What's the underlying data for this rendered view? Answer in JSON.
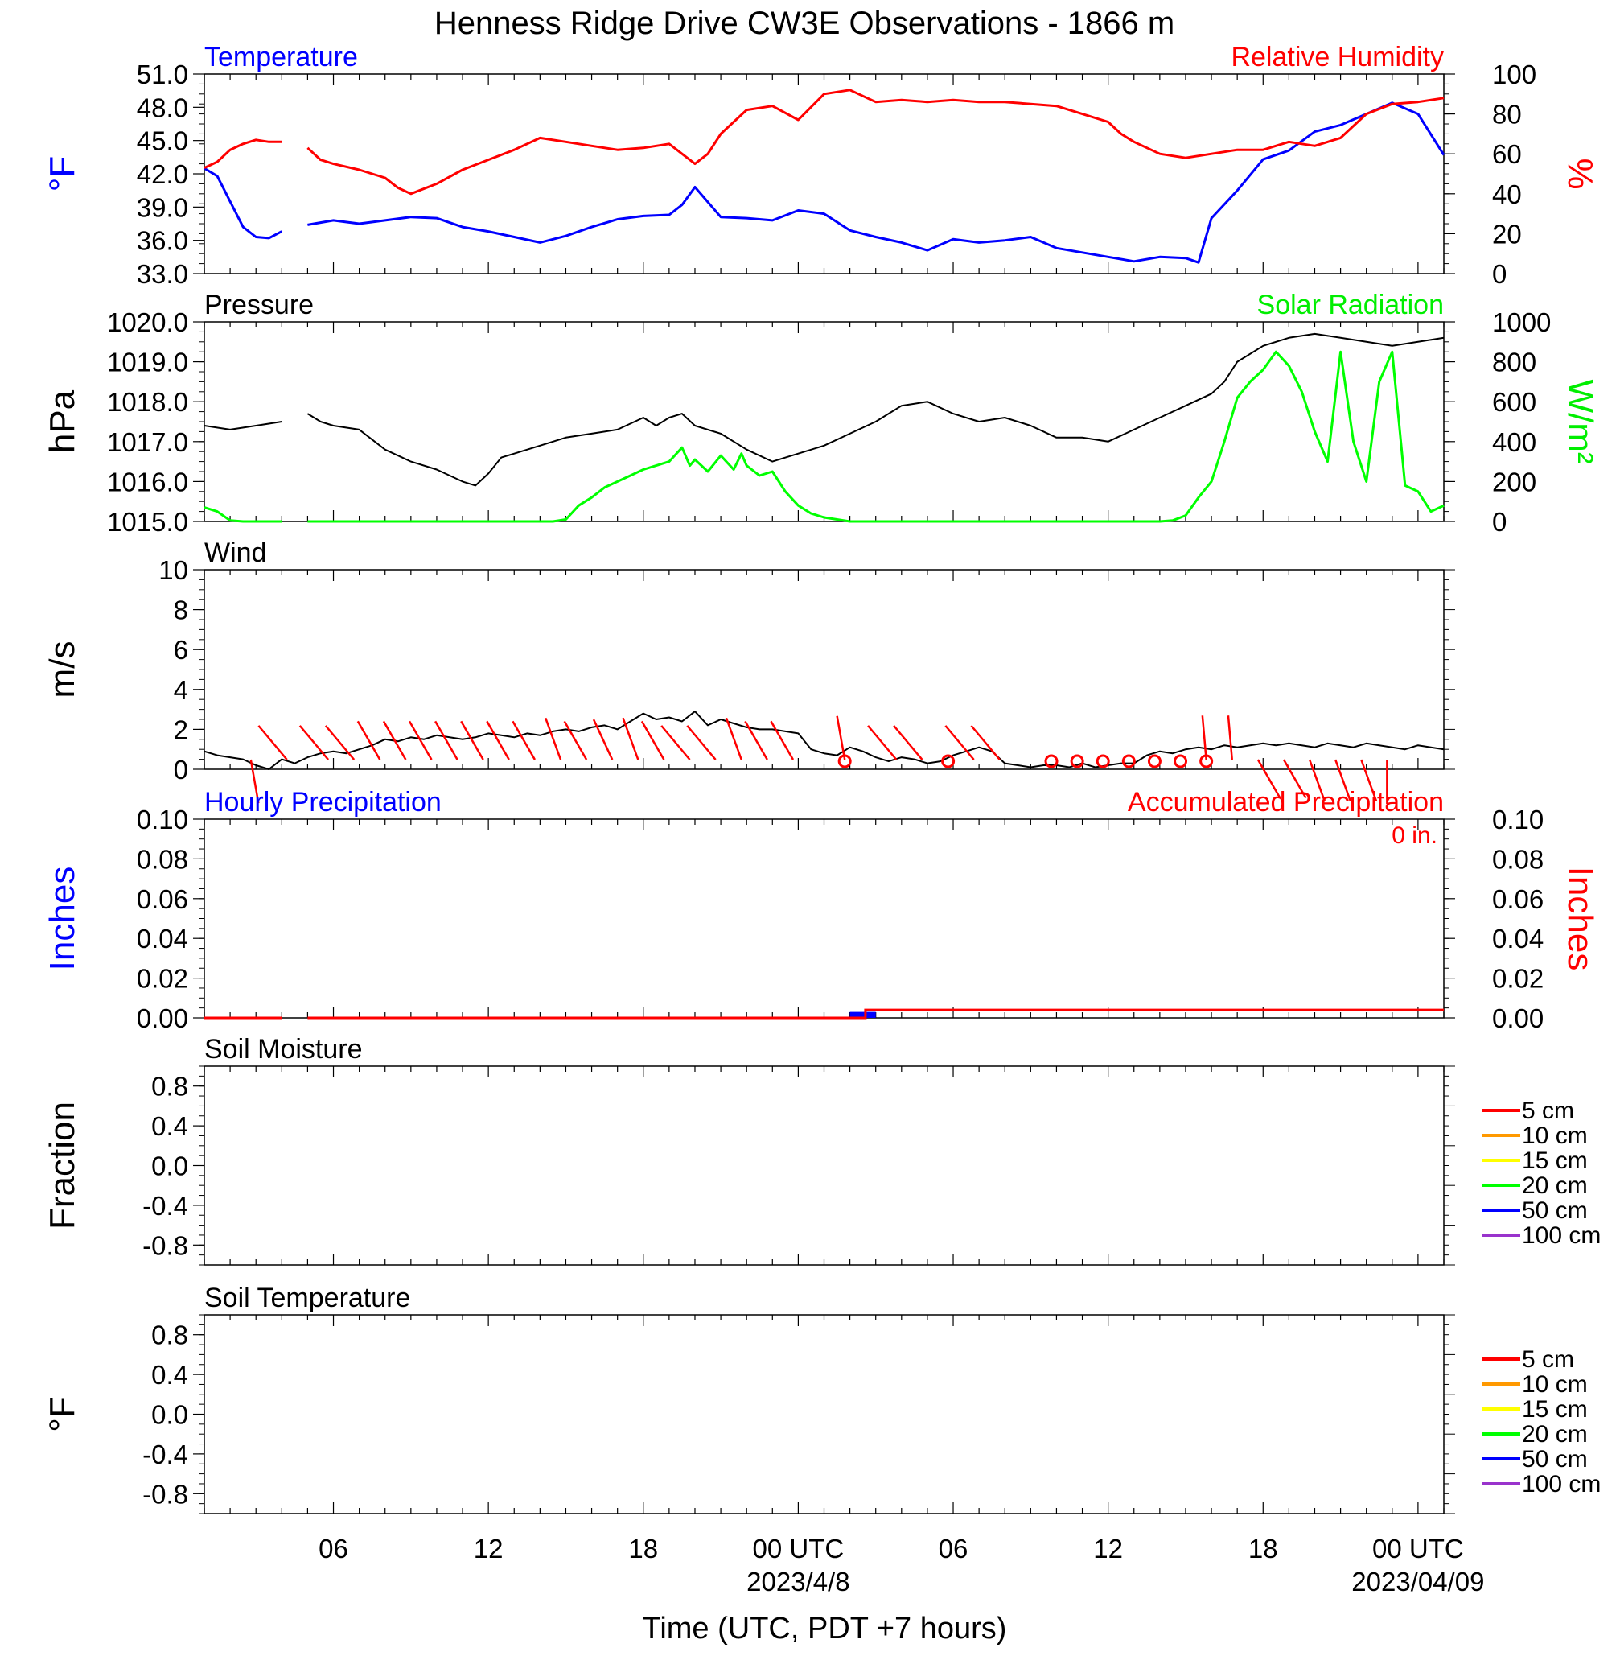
{
  "title": "Henness Ridge Drive CW3E Observations - 1866 m",
  "x_axis": {
    "label": "Time (UTC, PDT +7 hours)",
    "range_hours": [
      0,
      48
    ],
    "tick_labels": [
      {
        "hour": 5,
        "text": "06"
      },
      {
        "hour": 11,
        "text": "12"
      },
      {
        "hour": 17,
        "text": "18"
      },
      {
        "hour": 23,
        "text": "00 UTC"
      },
      {
        "hour": 29,
        "text": "06"
      },
      {
        "hour": 35,
        "text": "12"
      },
      {
        "hour": 41,
        "text": "18"
      },
      {
        "hour": 47,
        "text": "00 UTC"
      }
    ],
    "date_labels": [
      {
        "hour": 23,
        "text": "2023/4/8"
      },
      {
        "hour": 47,
        "text": "2023/04/09"
      }
    ]
  },
  "chart_data": [
    {
      "id": "temp-rh",
      "type": "line",
      "left_title": "Temperature",
      "right_title": "Relative Humidity",
      "left_ylabel": "°F",
      "right_ylabel": "%",
      "left_ylim": [
        33,
        51
      ],
      "right_ylim": [
        0,
        100
      ],
      "left_ticks": [
        "51.0",
        "48.0",
        "45.0",
        "42.0",
        "39.0",
        "36.0",
        "33.0"
      ],
      "right_ticks": [
        "100",
        "80",
        "60",
        "40",
        "20",
        "0"
      ],
      "gap_hours": [
        3,
        4
      ],
      "series": [
        {
          "name": "Temperature",
          "axis": "left",
          "color": "#0000ff",
          "x": [
            0,
            0.5,
            1,
            1.5,
            2,
            2.5,
            3,
            4,
            5,
            6,
            7,
            8,
            9,
            10,
            11,
            12,
            13,
            14,
            15,
            16,
            17,
            18,
            18.5,
            19,
            20,
            21,
            22,
            23,
            24,
            25,
            26,
            27,
            28,
            29,
            30,
            31,
            32,
            33,
            34,
            35,
            36,
            37,
            38,
            38.5,
            39,
            40,
            41,
            42,
            43,
            44,
            45,
            46,
            47,
            48
          ],
          "y": [
            42.5,
            41.8,
            39.5,
            37.2,
            36.3,
            36.2,
            36.8,
            37.4,
            37.8,
            37.5,
            37.8,
            38.1,
            38.0,
            37.2,
            36.8,
            36.3,
            35.8,
            36.4,
            37.2,
            37.9,
            38.2,
            38.3,
            39.2,
            40.8,
            38.1,
            38.0,
            37.8,
            38.7,
            38.4,
            36.9,
            36.3,
            35.8,
            35.1,
            36.1,
            35.8,
            36.0,
            36.3,
            35.3,
            34.9,
            34.5,
            34.1,
            34.5,
            34.4,
            34.0,
            38.0,
            40.5,
            43.3,
            44.1,
            45.8,
            46.4,
            47.4,
            48.4,
            47.4,
            43.7
          ]
        },
        {
          "name": "Relative Humidity",
          "axis": "right",
          "color": "#ff0000",
          "x": [
            0,
            0.5,
            1,
            1.5,
            2,
            2.5,
            3,
            4,
            4.5,
            5,
            6,
            7,
            7.5,
            8,
            9,
            10,
            11,
            12,
            13,
            14,
            15,
            16,
            17,
            18,
            19,
            19.5,
            20,
            21,
            22,
            23,
            24,
            25,
            26,
            27,
            28,
            29,
            30,
            31,
            32,
            33,
            34,
            35,
            35.5,
            36,
            37,
            38,
            39,
            40,
            41,
            42,
            43,
            44,
            45,
            46,
            47,
            48
          ],
          "y": [
            53,
            56,
            62,
            65,
            67,
            66,
            66,
            63,
            57,
            55,
            52,
            48,
            43,
            40,
            45,
            52,
            57,
            62,
            68,
            66,
            64,
            62,
            63,
            65,
            55,
            60,
            70,
            82,
            84,
            77,
            90,
            92,
            86,
            87,
            86,
            87,
            86,
            86,
            85,
            84,
            80,
            76,
            70,
            66,
            60,
            58,
            60,
            62,
            62,
            66,
            64,
            68,
            80,
            85,
            86,
            88
          ]
        }
      ]
    },
    {
      "id": "pressure-solar",
      "type": "line",
      "left_title": "Pressure",
      "right_title": "Solar Radiation",
      "left_ylabel": "hPa",
      "right_ylabel": "W/m²",
      "left_ylim": [
        1015,
        1020
      ],
      "right_ylim": [
        0,
        1000
      ],
      "left_ticks": [
        "1020.0",
        "1019.0",
        "1018.0",
        "1017.0",
        "1016.0",
        "1015.0"
      ],
      "right_ticks": [
        "1000",
        "800",
        "600",
        "400",
        "200",
        "0"
      ],
      "gap_hours": [
        3,
        4
      ],
      "series": [
        {
          "name": "Pressure",
          "axis": "left",
          "color": "#000000",
          "x": [
            0,
            1,
            2,
            3,
            4,
            4.5,
            5,
            6,
            7,
            8,
            9,
            10,
            10.5,
            11,
            11.5,
            12,
            13,
            14,
            15,
            16,
            17,
            17.5,
            18,
            18.5,
            19,
            20,
            21,
            22,
            23,
            24,
            25,
            26,
            27,
            28,
            29,
            30,
            31,
            32,
            33,
            34,
            35,
            36,
            37,
            38,
            39,
            39.5,
            40,
            41,
            42,
            43,
            44,
            45,
            46,
            47,
            48
          ],
          "y": [
            1017.4,
            1017.3,
            1017.4,
            1017.5,
            1017.7,
            1017.5,
            1017.4,
            1017.3,
            1016.8,
            1016.5,
            1016.3,
            1016.0,
            1015.9,
            1016.2,
            1016.6,
            1016.7,
            1016.9,
            1017.1,
            1017.2,
            1017.3,
            1017.6,
            1017.4,
            1017.6,
            1017.7,
            1017.4,
            1017.2,
            1016.8,
            1016.5,
            1016.7,
            1016.9,
            1017.2,
            1017.5,
            1017.9,
            1018.0,
            1017.7,
            1017.5,
            1017.6,
            1017.4,
            1017.1,
            1017.1,
            1017.0,
            1017.3,
            1017.6,
            1017.9,
            1018.2,
            1018.5,
            1019.0,
            1019.4,
            1019.6,
            1019.7,
            1019.6,
            1019.5,
            1019.4,
            1019.5,
            1019.6
          ]
        },
        {
          "name": "Solar Radiation",
          "axis": "right",
          "color": "#00ff00",
          "x": [
            0,
            0.5,
            1,
            1.5,
            3,
            4,
            7,
            10,
            13,
            13.5,
            14,
            14.5,
            15,
            15.5,
            16,
            16.5,
            17,
            17.5,
            18,
            18.5,
            18.8,
            19,
            19.5,
            20,
            20.5,
            20.8,
            21,
            21.5,
            22,
            22.5,
            23,
            23.5,
            24,
            25,
            26,
            28,
            30,
            32,
            34,
            36,
            37,
            37.5,
            38,
            38.5,
            39,
            39.5,
            40,
            40.5,
            41,
            41.5,
            42,
            42.5,
            43,
            43.5,
            44,
            44.5,
            45,
            45.5,
            46,
            46.5,
            47,
            47.5,
            48
          ],
          "y": [
            70,
            50,
            5,
            0,
            0,
            0,
            0,
            0,
            0,
            0,
            10,
            80,
            120,
            170,
            200,
            230,
            260,
            280,
            300,
            370,
            280,
            310,
            250,
            330,
            260,
            340,
            280,
            230,
            250,
            150,
            80,
            40,
            20,
            0,
            0,
            0,
            0,
            0,
            0,
            0,
            0,
            5,
            30,
            120,
            200,
            400,
            620,
            700,
            760,
            850,
            780,
            650,
            450,
            300,
            850,
            400,
            200,
            700,
            850,
            180,
            150,
            50,
            80
          ]
        }
      ]
    },
    {
      "id": "wind",
      "type": "line",
      "left_title": "Wind",
      "left_ylabel": "m/s",
      "left_ylim": [
        0,
        10
      ],
      "left_ticks": [
        "10",
        "8",
        "6",
        "4",
        "2",
        "0"
      ],
      "series": [
        {
          "name": "Wind speed",
          "color": "#000000",
          "x": [
            0,
            0.5,
            1,
            1.5,
            2,
            2.5,
            3,
            3.5,
            4,
            4.5,
            5,
            5.5,
            6,
            6.5,
            7,
            7.5,
            8,
            8.5,
            9,
            9.5,
            10,
            10.5,
            11,
            11.5,
            12,
            12.5,
            13,
            13.5,
            14,
            14.5,
            15,
            15.5,
            16,
            16.5,
            17,
            17.5,
            18,
            18.5,
            19,
            19.5,
            20,
            20.5,
            21,
            21.5,
            22,
            22.5,
            23,
            23.5,
            24,
            24.5,
            25,
            25.5,
            26,
            26.5,
            27,
            27.5,
            28,
            28.5,
            29,
            29.5,
            30,
            30.5,
            31,
            31.5,
            32,
            32.5,
            33,
            33.5,
            34,
            34.5,
            35,
            35.5,
            36,
            36.5,
            37,
            37.5,
            38,
            38.5,
            39,
            39.5,
            40,
            40.5,
            41,
            41.5,
            42,
            42.5,
            43,
            43.5,
            44,
            44.5,
            45,
            45.5,
            46,
            46.5,
            47,
            47.5,
            48
          ],
          "y": [
            0.9,
            0.7,
            0.6,
            0.5,
            0.2,
            0,
            0.5,
            0.3,
            0.6,
            0.8,
            0.9,
            0.8,
            1.0,
            1.2,
            1.5,
            1.4,
            1.6,
            1.5,
            1.7,
            1.6,
            1.5,
            1.6,
            1.8,
            1.7,
            1.6,
            1.8,
            1.7,
            1.9,
            2.0,
            1.9,
            2.1,
            2.2,
            2.0,
            2.4,
            2.8,
            2.5,
            2.6,
            2.4,
            2.9,
            2.2,
            2.5,
            2.3,
            2.1,
            2.0,
            2.0,
            1.9,
            1.8,
            1.0,
            0.8,
            0.7,
            1.1,
            0.9,
            0.6,
            0.4,
            0.6,
            0.5,
            0.3,
            0.4,
            0.7,
            0.9,
            1.1,
            0.9,
            0.3,
            0.2,
            0.1,
            0.2,
            0.2,
            0.1,
            0.3,
            0.1,
            0.2,
            0.3,
            0.3,
            0.7,
            0.9,
            0.8,
            1.0,
            1.1,
            1.0,
            1.2,
            1.1,
            1.2,
            1.3,
            1.2,
            1.3,
            1.2,
            1.1,
            1.3,
            1.2,
            1.1,
            1.3,
            1.2,
            1.1,
            1.0,
            1.2,
            1.1,
            1.0
          ]
        }
      ],
      "barbs": [
        {
          "x": 1.8,
          "dir": 170
        },
        {
          "x": 3.2,
          "dir": 320
        },
        {
          "x": 4.8,
          "dir": 320
        },
        {
          "x": 5.8,
          "dir": 320
        },
        {
          "x": 6.8,
          "dir": 330
        },
        {
          "x": 7.8,
          "dir": 330
        },
        {
          "x": 8.8,
          "dir": 330
        },
        {
          "x": 9.8,
          "dir": 330
        },
        {
          "x": 10.8,
          "dir": 330
        },
        {
          "x": 11.8,
          "dir": 330
        },
        {
          "x": 12.8,
          "dir": 330
        },
        {
          "x": 13.8,
          "dir": 340
        },
        {
          "x": 14.8,
          "dir": 330
        },
        {
          "x": 15.8,
          "dir": 335
        },
        {
          "x": 16.8,
          "dir": 340
        },
        {
          "x": 17.8,
          "dir": 330
        },
        {
          "x": 18.8,
          "dir": 320
        },
        {
          "x": 19.8,
          "dir": 320
        },
        {
          "x": 20.8,
          "dir": 340
        },
        {
          "x": 21.8,
          "dir": 330
        },
        {
          "x": 22.8,
          "dir": 330
        },
        {
          "x": 24.8,
          "dir": 350
        },
        {
          "x": 26.8,
          "dir": 320
        },
        {
          "x": 27.8,
          "dir": 320
        },
        {
          "x": 29.8,
          "dir": 320
        },
        {
          "x": 30.8,
          "dir": 320
        },
        {
          "x": 38.8,
          "dir": 355
        },
        {
          "x": 39.8,
          "dir": 355
        },
        {
          "x": 40.8,
          "dir": 150
        },
        {
          "x": 41.8,
          "dir": 150
        },
        {
          "x": 42.8,
          "dir": 160
        },
        {
          "x": 43.8,
          "dir": 160
        },
        {
          "x": 44.8,
          "dir": 160
        },
        {
          "x": 45.8,
          "dir": 180
        }
      ],
      "calm": [
        24,
        28,
        32,
        33,
        34,
        35,
        36,
        37,
        38
      ]
    },
    {
      "id": "precip",
      "type": "bar",
      "left_title": "Hourly Precipitation",
      "right_title": "Accumulated Precipitation",
      "total_label": "0 in.",
      "left_ylabel": "Inches",
      "right_ylabel": "Inches",
      "left_ylim": [
        0,
        0.1
      ],
      "right_ylim": [
        0,
        0.1
      ],
      "left_ticks": [
        "0.10",
        "0.08",
        "0.06",
        "0.04",
        "0.02",
        "0.00"
      ],
      "right_ticks": [
        "0.10",
        "0.08",
        "0.06",
        "0.04",
        "0.02",
        "0.00"
      ],
      "hourly": [
        {
          "x0": 25,
          "x1": 26,
          "value": 0.003
        }
      ],
      "accumulated": {
        "x": [
          0,
          3,
          4,
          25.6,
          25.6,
          48
        ],
        "y": [
          0,
          0,
          0,
          0,
          0.004,
          0.004
        ],
        "gap_hours": [
          3,
          4
        ]
      }
    },
    {
      "id": "soil-moisture",
      "type": "line",
      "left_title": "Soil Moisture",
      "left_ylabel": "Fraction",
      "left_ylim": [
        -1,
        1
      ],
      "left_ticks": [
        "0.8",
        "0.4",
        "0.0",
        "-0.4",
        "-0.8"
      ],
      "legend": [
        {
          "label": "5 cm",
          "color": "#ff0000"
        },
        {
          "label": "10 cm",
          "color": "#ff9900"
        },
        {
          "label": "15 cm",
          "color": "#ffff00"
        },
        {
          "label": "20 cm",
          "color": "#00ff00"
        },
        {
          "label": "50 cm",
          "color": "#0000ff"
        },
        {
          "label": "100 cm",
          "color": "#9933cc"
        }
      ]
    },
    {
      "id": "soil-temperature",
      "type": "line",
      "left_title": "Soil Temperature",
      "left_ylabel": "°F",
      "left_ylim": [
        -1,
        1
      ],
      "left_ticks": [
        "0.8",
        "0.4",
        "0.0",
        "-0.4",
        "-0.8"
      ],
      "legend": [
        {
          "label": "5 cm",
          "color": "#ff0000"
        },
        {
          "label": "10 cm",
          "color": "#ff9900"
        },
        {
          "label": "15 cm",
          "color": "#ffff00"
        },
        {
          "label": "20 cm",
          "color": "#00ff00"
        },
        {
          "label": "50 cm",
          "color": "#0000ff"
        },
        {
          "label": "100 cm",
          "color": "#9933cc"
        }
      ]
    }
  ]
}
